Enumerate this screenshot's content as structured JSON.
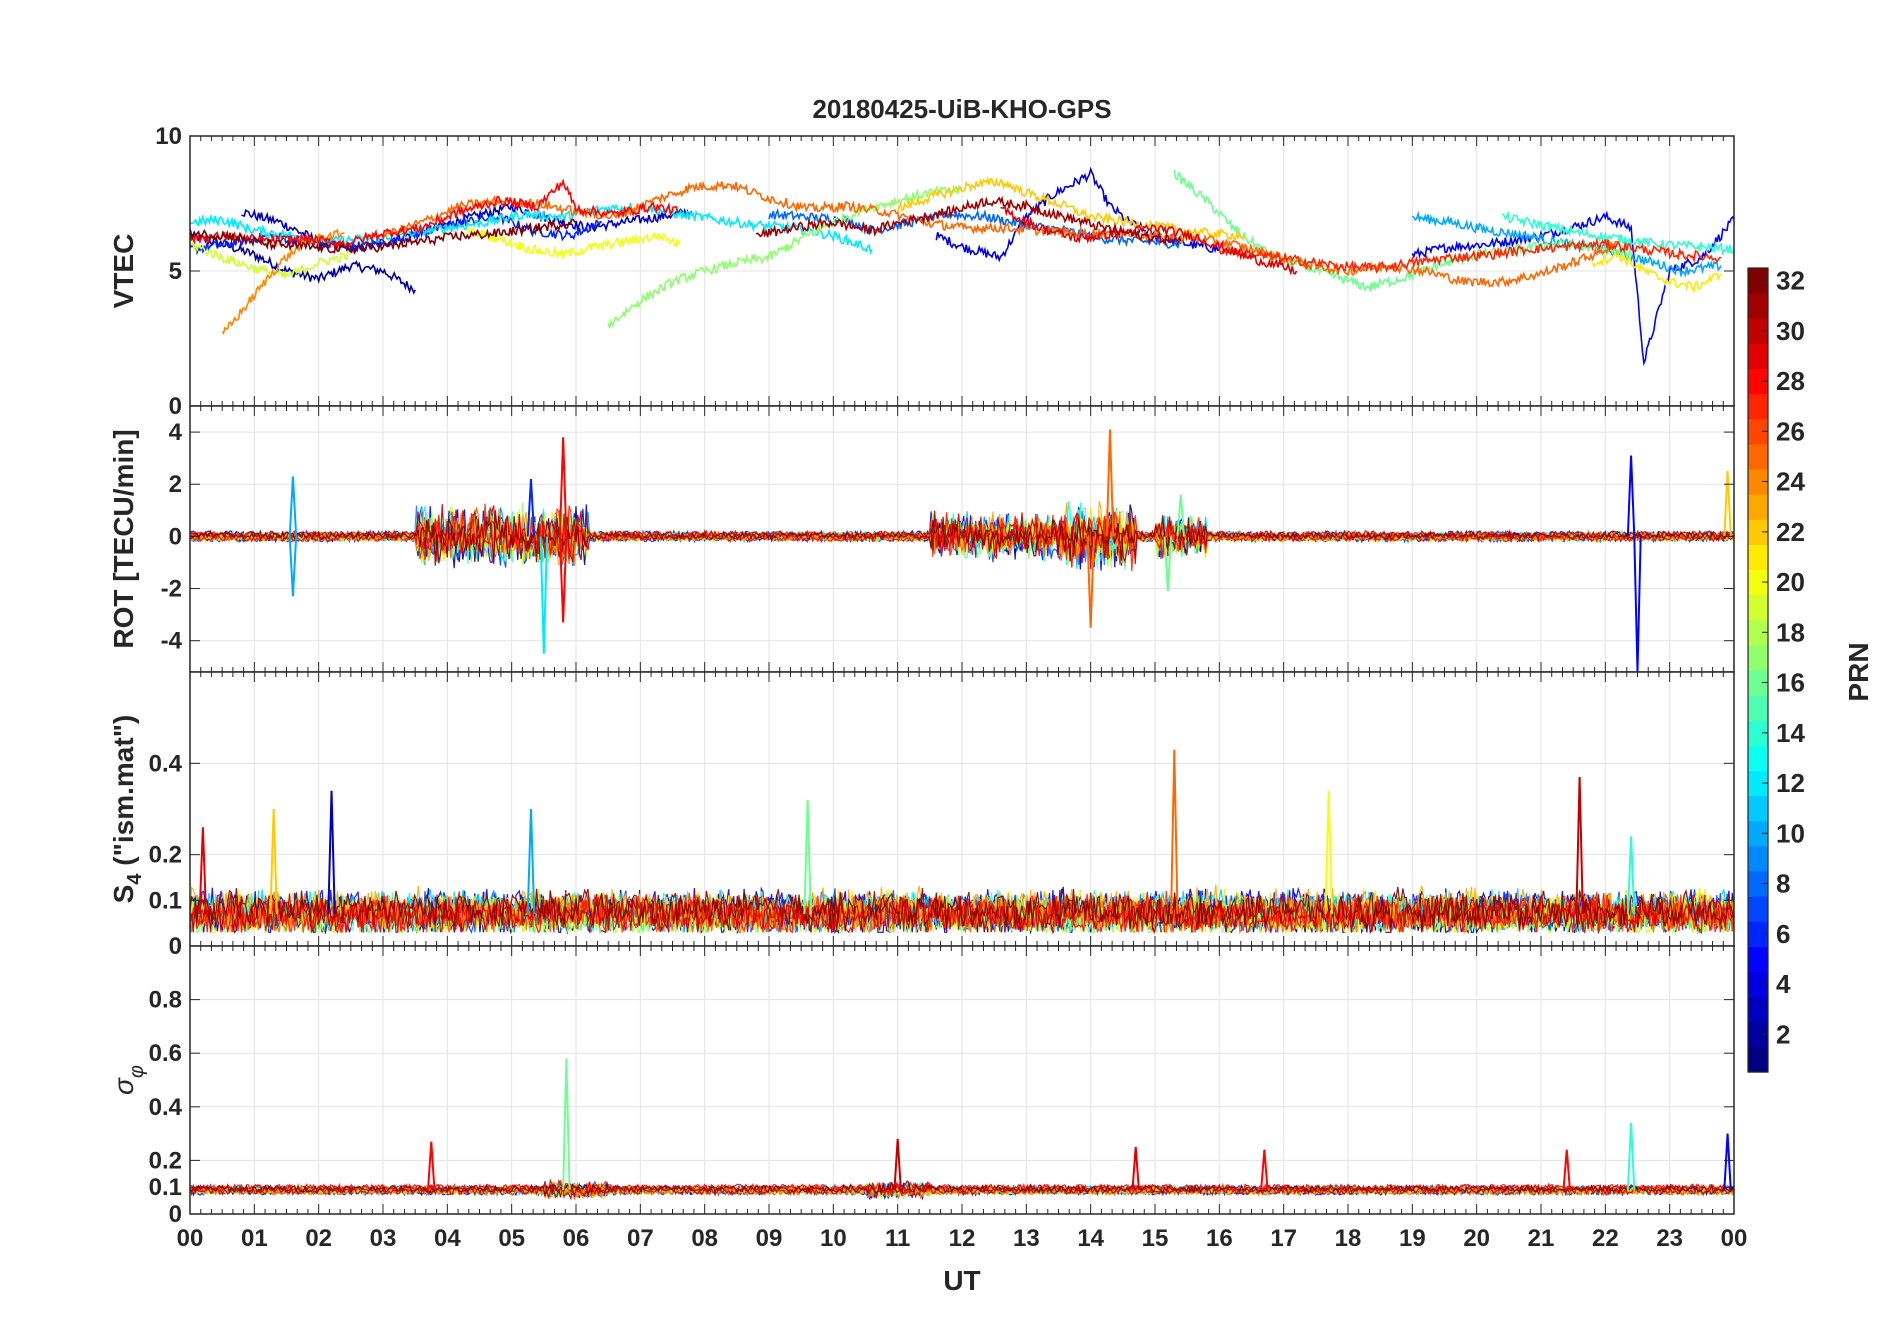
{
  "figure": {
    "title": "20180425-UiB-KHO-GPS",
    "xlabel": "UT",
    "x_ticklabels": [
      "00",
      "01",
      "02",
      "03",
      "04",
      "05",
      "06",
      "07",
      "08",
      "09",
      "10",
      "11",
      "12",
      "13",
      "14",
      "15",
      "16",
      "17",
      "18",
      "19",
      "20",
      "21",
      "22",
      "23",
      "00"
    ],
    "colorbar": {
      "label": "PRN",
      "range": [
        1,
        32
      ],
      "ticklabels": [
        "2",
        "4",
        "6",
        "8",
        "10",
        "12",
        "14",
        "16",
        "18",
        "20",
        "22",
        "24",
        "26",
        "28",
        "30",
        "32"
      ],
      "colormap": "jet",
      "levels": 32
    }
  },
  "chart_data": [
    {
      "type": "line",
      "panel": "vtec",
      "ylabel": "VTEC",
      "xlim": [
        0,
        24
      ],
      "ylim": [
        0,
        10
      ],
      "yticks": [
        0,
        5,
        10
      ],
      "x_unit": "hours UT",
      "grid": true,
      "note_series": "one trace per GPS PRN (1-32), colored by PRN; values approximated",
      "series": [
        {
          "prn": 2,
          "x": [
            0.0,
            0.5,
            1.0,
            1.5,
            2.0,
            2.5,
            3.0,
            3.5
          ],
          "y": [
            6.3,
            6.0,
            5.6,
            5.0,
            4.7,
            5.2,
            5.0,
            4.3
          ]
        },
        {
          "prn": 3,
          "x": [
            0.8,
            1.4,
            2.0,
            2.6,
            3.2,
            3.8,
            4.4,
            5.0,
            5.5,
            6.2,
            7.0,
            7.8
          ],
          "y": [
            7.2,
            6.8,
            6.1,
            5.8,
            6.2,
            6.6,
            7.0,
            7.4,
            7.0,
            6.6,
            6.9,
            7.2
          ]
        },
        {
          "prn": 4,
          "x": [
            11.6,
            12.0,
            12.6,
            13.0,
            13.4,
            14.0,
            14.3,
            14.6,
            15.0,
            15.5,
            16.0
          ],
          "y": [
            6.3,
            5.9,
            5.5,
            7.0,
            7.8,
            8.6,
            7.4,
            6.8,
            6.3,
            6.0,
            5.8
          ]
        },
        {
          "prn": 5,
          "x": [
            19.0,
            19.6,
            20.2,
            21.0,
            21.6,
            22.0,
            22.4,
            22.6,
            23.0,
            23.5,
            24.0
          ],
          "y": [
            5.6,
            5.9,
            6.0,
            6.3,
            6.7,
            7.0,
            6.6,
            1.6,
            5.0,
            5.5,
            6.9
          ]
        },
        {
          "prn": 6,
          "x": [
            0.0,
            0.6,
            1.2,
            1.8,
            2.4,
            3.0,
            3.6,
            4.2,
            4.8,
            5.3,
            5.9,
            6.4
          ],
          "y": [
            5.8,
            6.0,
            6.3,
            6.1,
            5.9,
            6.0,
            6.4,
            6.8,
            7.0,
            6.5,
            6.3,
            6.8
          ]
        },
        {
          "prn": 8,
          "x": [
            9.0,
            9.6,
            10.2,
            10.6,
            11.2,
            11.8,
            12.4,
            13.0,
            13.6,
            14.2,
            14.8,
            15.4
          ],
          "y": [
            7.1,
            7.0,
            6.9,
            6.5,
            6.8,
            7.1,
            7.0,
            6.7,
            6.5,
            6.2,
            6.1,
            6.0
          ]
        },
        {
          "prn": 10,
          "x": [
            19.0,
            19.6,
            20.2,
            20.8,
            21.4,
            22.0,
            22.6,
            23.2,
            23.8
          ],
          "y": [
            7.0,
            6.8,
            6.5,
            6.3,
            6.0,
            5.8,
            5.4,
            5.0,
            5.2
          ]
        },
        {
          "prn": 12,
          "x": [
            0.0,
            0.5,
            1.0,
            1.6,
            2.2,
            2.8,
            3.4,
            4.0,
            4.6,
            5.2,
            5.8,
            6.4,
            7.0,
            7.6,
            8.2,
            8.8,
            9.4,
            10.0,
            10.6
          ],
          "y": [
            6.8,
            6.9,
            6.5,
            6.3,
            6.1,
            6.2,
            6.4,
            6.6,
            6.8,
            7.1,
            7.0,
            7.3,
            7.4,
            7.1,
            6.9,
            6.7,
            6.6,
            6.3,
            5.8
          ]
        },
        {
          "prn": 14,
          "x": [
            20.4,
            21.0,
            21.6,
            22.2,
            22.8,
            23.4,
            24.0
          ],
          "y": [
            7.0,
            6.7,
            6.4,
            6.2,
            6.0,
            5.9,
            5.8
          ]
        },
        {
          "prn": 16,
          "x": [
            15.3,
            15.8,
            16.3,
            16.8,
            17.3,
            17.8,
            18.3,
            18.8,
            19.4,
            20.0,
            20.6,
            21.2,
            21.8,
            22.4
          ],
          "y": [
            8.6,
            7.6,
            6.4,
            5.6,
            5.2,
            4.8,
            4.4,
            4.7,
            5.2,
            5.6,
            5.8,
            6.0,
            5.9,
            5.6
          ]
        },
        {
          "prn": 17,
          "x": [
            6.5,
            7.0,
            7.5,
            8.0,
            8.5,
            9.0,
            9.5,
            10.0,
            10.5,
            11.0,
            11.5,
            12.0
          ],
          "y": [
            3.0,
            3.9,
            4.6,
            5.0,
            5.3,
            5.5,
            6.2,
            6.8,
            7.3,
            7.6,
            7.9,
            8.0
          ]
        },
        {
          "prn": 19,
          "x": [
            0.0,
            0.5,
            1.0,
            1.5,
            2.0,
            2.5
          ],
          "y": [
            6.0,
            5.5,
            5.1,
            4.8,
            5.3,
            5.6
          ]
        },
        {
          "prn": 20,
          "x": [
            4.3,
            4.8,
            5.3,
            5.8,
            6.3,
            6.8,
            7.3,
            7.6
          ],
          "y": [
            6.5,
            6.2,
            5.8,
            5.6,
            5.9,
            6.1,
            6.3,
            6.0
          ]
        },
        {
          "prn": 21,
          "x": [
            21.8,
            22.2,
            22.6,
            23.0,
            23.4,
            23.8
          ],
          "y": [
            5.3,
            5.6,
            5.0,
            4.6,
            4.4,
            4.9
          ]
        },
        {
          "prn": 22,
          "x": [
            11.0,
            11.6,
            12.2,
            12.6,
            13.0,
            13.6,
            14.0,
            14.6,
            15.2,
            15.8,
            16.4
          ],
          "y": [
            7.3,
            7.8,
            8.2,
            8.3,
            7.9,
            7.4,
            7.0,
            6.8,
            6.6,
            6.4,
            6.3
          ]
        },
        {
          "prn": 24,
          "x": [
            0.5,
            0.8,
            1.1,
            1.4,
            1.7,
            2.0,
            2.4
          ],
          "y": [
            2.6,
            3.5,
            4.4,
            5.3,
            5.9,
            6.2,
            6.4
          ]
        },
        {
          "prn": 25,
          "x": [
            3.0,
            3.6,
            4.2,
            4.8,
            5.4,
            6.0,
            6.6,
            7.2,
            7.8,
            8.4,
            9.0,
            9.6,
            10.2,
            10.8,
            11.4,
            12.0,
            12.6,
            13.2,
            13.8,
            14.4,
            15.0,
            15.6,
            16.2,
            16.8,
            17.4,
            18.0,
            18.6,
            19.2,
            19.8,
            20.4,
            21.0,
            21.6,
            22.2
          ],
          "y": [
            6.3,
            6.8,
            7.4,
            7.6,
            7.5,
            7.2,
            7.0,
            7.6,
            8.1,
            8.2,
            7.7,
            7.3,
            7.4,
            7.2,
            6.8,
            6.6,
            6.6,
            6.5,
            6.4,
            6.4,
            6.3,
            6.2,
            6.0,
            5.6,
            5.2,
            5.0,
            5.2,
            5.0,
            4.6,
            4.6,
            4.9,
            5.4,
            6.0
          ]
        },
        {
          "prn": 27,
          "x": [
            16.0,
            16.6,
            17.2,
            17.8,
            18.4,
            19.0,
            19.6,
            20.2,
            20.8,
            21.4,
            22.0,
            22.6,
            23.2,
            23.8
          ],
          "y": [
            5.8,
            5.6,
            5.4,
            5.2,
            5.1,
            5.3,
            5.5,
            5.6,
            5.8,
            5.9,
            6.0,
            5.8,
            5.6,
            5.5
          ]
        },
        {
          "prn": 28,
          "x": [
            0.0,
            0.6,
            1.2,
            1.8,
            2.4,
            3.0,
            3.6,
            4.2,
            4.8,
            5.4,
            5.8,
            6.0,
            6.6,
            7.2,
            7.6
          ],
          "y": [
            6.2,
            6.3,
            6.1,
            6.2,
            6.0,
            6.4,
            6.6,
            7.2,
            7.6,
            7.4,
            8.3,
            7.3,
            7.1,
            7.4,
            7.2
          ]
        },
        {
          "prn": 29,
          "x": [
            12.6,
            13.2,
            13.8,
            14.4,
            15.0,
            15.6,
            16.0,
            16.6,
            17.2
          ],
          "y": [
            7.3,
            6.6,
            6.2,
            6.4,
            6.6,
            6.3,
            5.9,
            5.4,
            5.0
          ]
        },
        {
          "prn": 31,
          "x": [
            8.8,
            9.4,
            10.0,
            10.6,
            11.2,
            11.8,
            12.4,
            13.0,
            13.6,
            14.2,
            14.8,
            15.4
          ],
          "y": [
            6.3,
            6.6,
            6.8,
            6.5,
            6.9,
            7.2,
            7.6,
            7.4,
            7.0,
            6.6,
            6.3,
            6.1
          ]
        },
        {
          "prn": 32,
          "x": [
            0.0,
            0.6,
            1.2,
            1.8,
            2.4,
            3.0,
            3.6,
            4.2,
            4.8,
            5.4,
            6.0
          ],
          "y": [
            6.4,
            6.3,
            6.0,
            5.9,
            5.8,
            5.9,
            6.1,
            6.3,
            6.4,
            6.6,
            6.8
          ]
        }
      ]
    },
    {
      "type": "line",
      "panel": "rot",
      "ylabel": "ROT [TECU/min]",
      "xlim": [
        0,
        24
      ],
      "ylim": [
        -5.2,
        5
      ],
      "yticks": [
        -4,
        -2,
        0,
        2,
        4
      ],
      "x_unit": "hours UT",
      "grid": true,
      "note_series": "noise-like fluctuations around 0 for all PRNs; notable spikes listed",
      "spikes": [
        {
          "prn": 10,
          "x": 1.6,
          "y": 2.3
        },
        {
          "prn": 10,
          "x": 1.6,
          "y": -2.3
        },
        {
          "prn": 28,
          "x": 5.8,
          "y": 3.8
        },
        {
          "prn": 28,
          "x": 5.8,
          "y": -3.3
        },
        {
          "prn": 12,
          "x": 5.5,
          "y": -4.5
        },
        {
          "prn": 6,
          "x": 5.3,
          "y": 2.2
        },
        {
          "prn": 25,
          "x": 14.3,
          "y": 4.1
        },
        {
          "prn": 25,
          "x": 14.0,
          "y": -3.5
        },
        {
          "prn": 16,
          "x": 15.2,
          "y": -2.1
        },
        {
          "prn": 16,
          "x": 15.4,
          "y": 1.6
        },
        {
          "prn": 5,
          "x": 22.4,
          "y": 3.1
        },
        {
          "prn": 5,
          "x": 22.5,
          "y": -5.2
        },
        {
          "prn": 22,
          "x": 23.9,
          "y": 2.5
        }
      ]
    },
    {
      "type": "line",
      "panel": "s4",
      "ylabel_parts": [
        "S",
        "4",
        " (\"ism.mat\")"
      ],
      "xlim": [
        0,
        24
      ],
      "ylim": [
        0,
        0.6
      ],
      "yticks": [
        0,
        0.1,
        0.2,
        0.4
      ],
      "x_unit": "hours UT",
      "grid": true,
      "note_series": "baseline ~0.05-0.1 for all PRNs; notable peaks listed",
      "spikes": [
        {
          "prn": 3,
          "x": 2.2,
          "y": 0.34
        },
        {
          "prn": 22,
          "x": 1.3,
          "y": 0.3
        },
        {
          "prn": 10,
          "x": 5.3,
          "y": 0.3
        },
        {
          "prn": 16,
          "x": 9.6,
          "y": 0.32
        },
        {
          "prn": 25,
          "x": 15.3,
          "y": 0.43
        },
        {
          "prn": 20,
          "x": 17.7,
          "y": 0.34
        },
        {
          "prn": 30,
          "x": 21.6,
          "y": 0.37
        },
        {
          "prn": 14,
          "x": 22.4,
          "y": 0.24
        },
        {
          "prn": 29,
          "x": 0.2,
          "y": 0.26
        }
      ]
    },
    {
      "type": "line",
      "panel": "sigma_phi",
      "ylabel_parts": [
        "σ",
        "φ"
      ],
      "xlim": [
        0,
        24
      ],
      "ylim": [
        0,
        1
      ],
      "yticks": [
        0,
        0.1,
        0.2,
        0.4,
        0.6,
        0.8
      ],
      "x_unit": "hours UT",
      "grid": true,
      "note_series": "baseline ~0.1 for all PRNs; notable peaks listed",
      "spikes": [
        {
          "prn": 16,
          "x": 5.85,
          "y": 0.58
        },
        {
          "prn": 28,
          "x": 3.75,
          "y": 0.27
        },
        {
          "prn": 30,
          "x": 11.0,
          "y": 0.28
        },
        {
          "prn": 29,
          "x": 14.7,
          "y": 0.25
        },
        {
          "prn": 28,
          "x": 16.7,
          "y": 0.24
        },
        {
          "prn": 28,
          "x": 21.4,
          "y": 0.24
        },
        {
          "prn": 14,
          "x": 22.4,
          "y": 0.34
        },
        {
          "prn": 5,
          "x": 23.9,
          "y": 0.3
        }
      ]
    }
  ]
}
